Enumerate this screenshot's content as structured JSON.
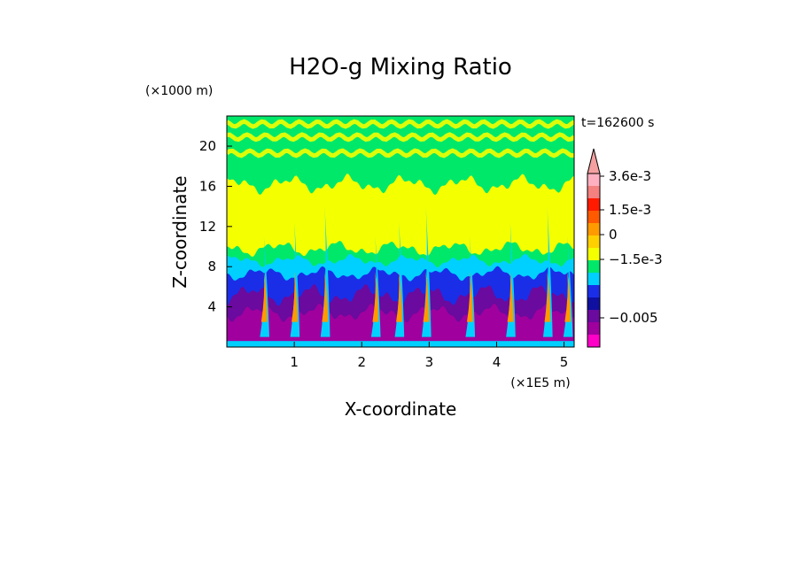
{
  "chart_data": {
    "type": "heatmap",
    "title": "H2O-g Mixing Ratio",
    "xlabel": "X-coordinate",
    "ylabel": "Z-coordinate",
    "x_unit": "(×1E5 m)",
    "y_unit": "(×1000 m)",
    "time_label": "t=162600 s",
    "x_ticks": [
      "1",
      "2",
      "3",
      "4",
      "5"
    ],
    "y_ticks": [
      "4",
      "8",
      "12",
      "16",
      "20"
    ],
    "xlim": [
      0,
      5.15
    ],
    "ylim": [
      0,
      23
    ],
    "colorbar": {
      "tick_labels": [
        "3.6e-3",
        "1.5e-3",
        "0",
        "−1.5e-3",
        "−0.005"
      ],
      "colors": [
        "#ff00c8",
        "#a0009e",
        "#6a0a9e",
        "#1010a0",
        "#1a2ee8",
        "#00d0ff",
        "#00e86a",
        "#f4ff00",
        "#ffd000",
        "#ff9a00",
        "#ff5a00",
        "#ff1a00",
        "#f48080",
        "#ffb0c0"
      ]
    },
    "field": {
      "description_levels": "contour bands of H2O-g mixing ratio anomaly",
      "band_colors": {
        "surface_strip": "#00d0ff",
        "lower_layer": "#a0009e",
        "mid_lower": "#6a0a9e",
        "blue_layer": "#1a2ee8",
        "cyan_layer": "#00d0ff",
        "green_layer": "#00e86a",
        "yellow_layer": "#f4ff00",
        "plume_core": "#ff9a00"
      },
      "plume_x": [
        0.55,
        1.0,
        1.45,
        2.2,
        2.55,
        2.95,
        3.6,
        4.2,
        4.75,
        5.05
      ]
    }
  }
}
